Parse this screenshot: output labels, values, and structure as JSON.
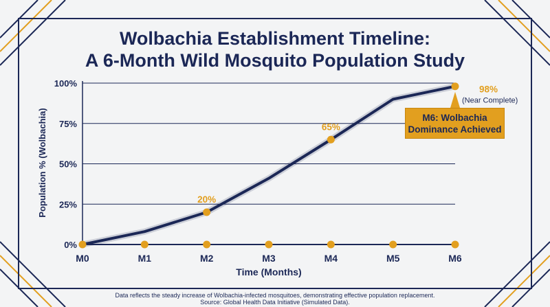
{
  "title_line1": "Wolbachia Establishment Timeline:",
  "title_line2": "A 6-Month Wild Mosquito Population Study",
  "footnote_line1": "Data reflects the steady increase of Wolbachia-infected mosquitoes, demonstrating effective population replacement.",
  "footnote_line2": "Source: Global Health Data Initiative (Simulated Data).",
  "colors": {
    "navy": "#1b2756",
    "gold": "#e29f1f",
    "background": "#f3f4f5"
  },
  "chart_data": {
    "type": "line",
    "xlabel": "Time (Months)",
    "ylabel": "Population % (Wolbachia)",
    "categories": [
      "M0",
      "M1",
      "M2",
      "M3",
      "M4",
      "M5",
      "M6"
    ],
    "ylim": [
      0,
      100
    ],
    "yticks": [
      "0%",
      "25%",
      "50%",
      "75%",
      "100%"
    ],
    "grid": true,
    "series": [
      {
        "values": [
          0,
          8,
          20,
          41,
          65,
          90,
          98
        ]
      }
    ],
    "baseline_markers": [
      "M1",
      "M2",
      "M3",
      "M4",
      "M5",
      "M6"
    ],
    "data_labels": [
      {
        "category": "M2",
        "text": "20%"
      },
      {
        "category": "M4",
        "text": "65%"
      },
      {
        "category": "M6",
        "text": "98%",
        "note": "(Near Complete)"
      }
    ],
    "callout": {
      "category": "M6",
      "line1": "M6: Wolbachia",
      "line2": "Dominance Achieved"
    }
  }
}
